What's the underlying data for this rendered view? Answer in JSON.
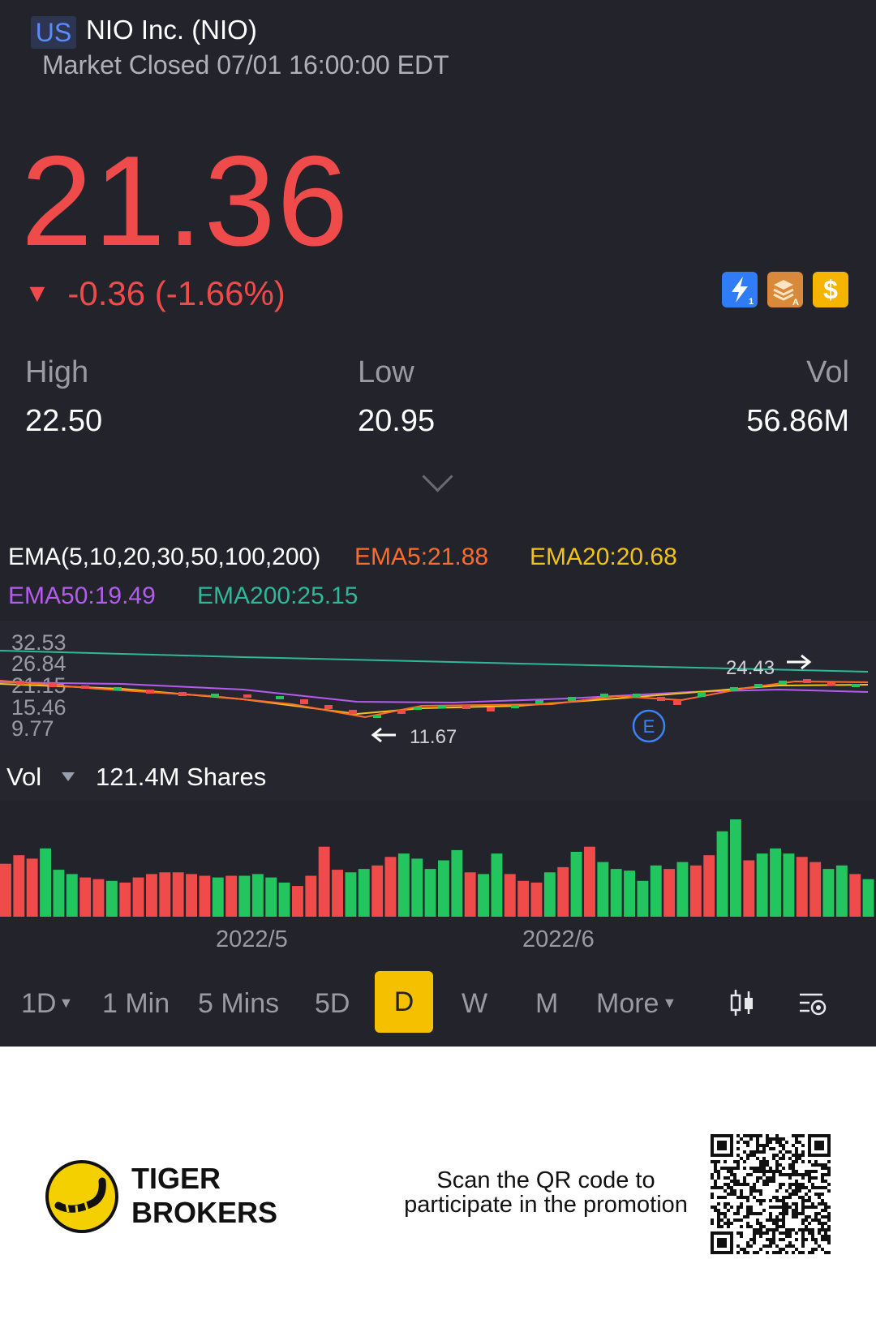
{
  "header": {
    "market": "US",
    "title": "NIO Inc. (NIO)",
    "status": "Market Closed 07/01 16:00:00 EDT"
  },
  "quote": {
    "price": "21.36",
    "change": "-0.36 (-1.66%)",
    "direction_symbol": "▼",
    "color_down": "#f04b4b",
    "color_up": "#22c55e"
  },
  "badges": [
    {
      "icon": "lightning-level1-icon",
      "color": "#2f7cf6"
    },
    {
      "icon": "stack-a-icon",
      "color": "#d8893a"
    },
    {
      "icon": "dollar-icon",
      "color": "#f5b400"
    }
  ],
  "stats": {
    "high_label": "High",
    "high": "22.50",
    "low_label": "Low",
    "low": "20.95",
    "vol_label": "Vol",
    "vol": "56.86M"
  },
  "indicators": {
    "ema_title": "EMA(5,10,20,30,50,100,200)",
    "ema5": "EMA5:21.88",
    "ema20": "EMA20:20.68",
    "ema50": "EMA50:19.49",
    "ema200": "EMA200:25.15",
    "colors": {
      "ema5": "#ff6b2d",
      "ema20": "#f2c21a",
      "ema50": "#b45cf0",
      "ema200": "#2fb79a"
    }
  },
  "price_chart": {
    "y_ticks": [
      "32.53",
      "26.84",
      "21.15",
      "15.46",
      "9.77"
    ],
    "low_marker": "11.67",
    "high_marker": "24.43",
    "earnings_marker": "E"
  },
  "volume": {
    "label": "Vol",
    "total": "121.4M Shares"
  },
  "chart_data": {
    "type": "bar",
    "title": "",
    "xlabel": "",
    "ylabel": "",
    "x_ticks": [
      "2022/5",
      "2022/6"
    ],
    "values": [
      62,
      72,
      68,
      80,
      55,
      50,
      46,
      44,
      42,
      40,
      46,
      50,
      52,
      52,
      50,
      48,
      46,
      48,
      48,
      50,
      46,
      40,
      36,
      48,
      82,
      55,
      52,
      56,
      60,
      70,
      74,
      68,
      56,
      66,
      78,
      52,
      50,
      74,
      50,
      42,
      40,
      52,
      58,
      76,
      82,
      64,
      56,
      54,
      42,
      60,
      56,
      64,
      60,
      72,
      100,
      114,
      66,
      74,
      80,
      74,
      70,
      64,
      56,
      60,
      50,
      44
    ],
    "up": [
      0,
      0,
      0,
      1,
      1,
      1,
      0,
      0,
      1,
      0,
      0,
      0,
      0,
      0,
      0,
      0,
      1,
      0,
      1,
      1,
      1,
      1,
      0,
      0,
      0,
      0,
      1,
      1,
      0,
      0,
      1,
      1,
      1,
      1,
      1,
      0,
      1,
      1,
      0,
      0,
      0,
      1,
      0,
      1,
      0,
      1,
      1,
      1,
      1,
      1,
      0,
      1,
      0,
      0,
      1,
      1,
      0,
      1,
      1,
      1,
      0,
      0,
      1,
      1,
      0,
      1
    ]
  },
  "timeframes": {
    "items": [
      "1D",
      "1 Min",
      "5 Mins",
      "5D",
      "D",
      "W",
      "M",
      "More"
    ],
    "active": "D"
  },
  "footer": {
    "brand_line1": "TIGER",
    "brand_line2": "BROKERS",
    "promo_line1": "Scan the QR code to",
    "promo_line2": "participate in the promotion"
  }
}
